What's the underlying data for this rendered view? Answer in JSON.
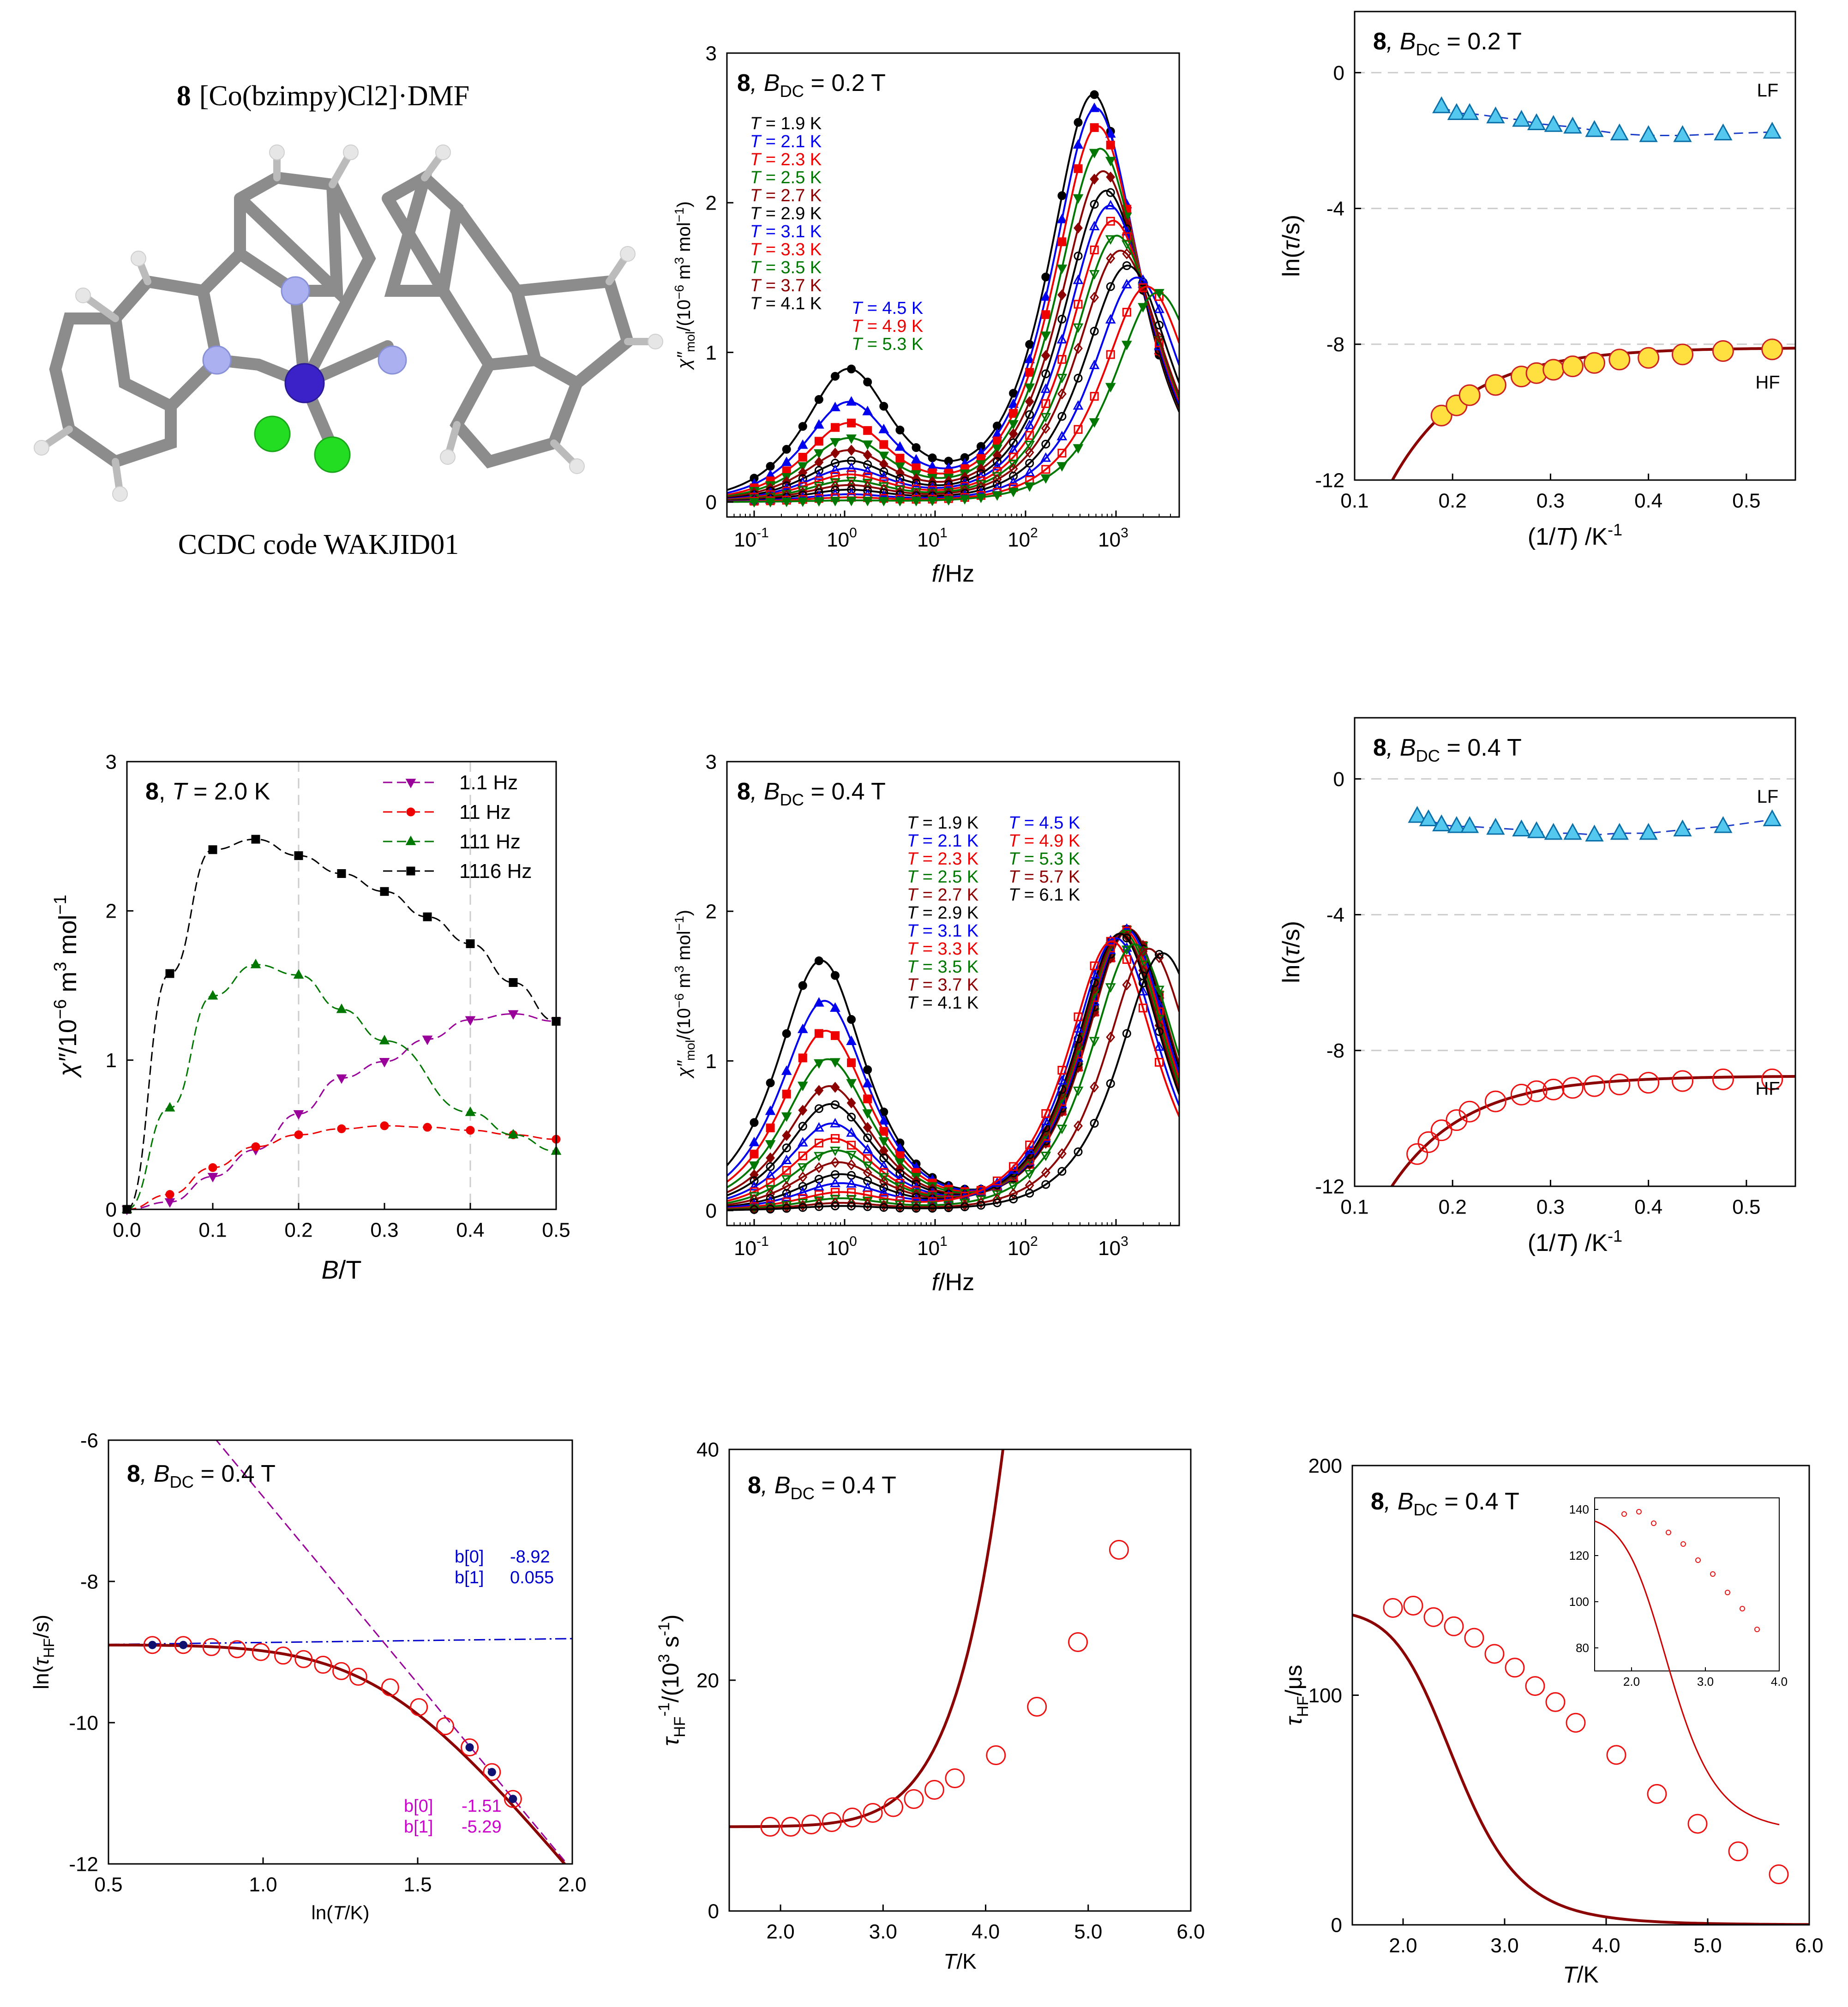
{
  "molecule_panel": {
    "label_num": "8",
    "label_formula": "[Co(bzimpy)Cl2]·DMF",
    "ccdc": "CCDC code WAKJID01",
    "colors": {
      "bond": "#8c8c8c",
      "carbon": "#9a9a9a",
      "nitrogen": "#aab0f0",
      "cobalt": "#3a22c8",
      "chlorine": "#22dd22",
      "hydrogen": "#e6e6e6"
    }
  },
  "chart_data": [
    {
      "id": "ac_02T",
      "type": "line",
      "title": "8, B_DC = 0.2 T",
      "title_num": "8",
      "title_rest": ", B",
      "title_sub": "DC",
      "title_tail": " = 0.2 T",
      "xlabel": "f/Hz",
      "ylabel": "χ''mol/(10^-6 m^3 mol^-1)",
      "xscale": "log",
      "xlim": [
        0.05,
        5000
      ],
      "ylim": [
        -0.1,
        3
      ],
      "yticks": [
        0,
        1,
        2,
        3
      ],
      "xticks": [
        "10-1",
        "100",
        "101",
        "102",
        "103"
      ],
      "legend_col1": [
        "T = 1.9 K",
        "T = 2.1 K",
        "T = 2.3 K",
        "T = 2.5 K",
        "T = 2.7 K",
        "T = 2.9 K",
        "T = 3.1 K",
        "T = 3.3 K",
        "T = 3.5 K",
        "T = 3.7 K",
        "T = 4.1 K"
      ],
      "legend_col2": [
        "T = 4.5 K",
        "T = 4.9 K",
        "T = 5.3 K"
      ],
      "series": [
        {
          "name": "1.9 K",
          "color": "#000000",
          "marker": "circle",
          "fill": true,
          "lf_amp": 0.88,
          "lf_f": 1.1,
          "hf_amp": 2.72,
          "hf_f": 560
        },
        {
          "name": "2.1 K",
          "color": "#0000ee",
          "marker": "triangle-up",
          "fill": true,
          "lf_amp": 0.66,
          "lf_f": 1.1,
          "hf_amp": 2.63,
          "hf_f": 600
        },
        {
          "name": "2.3 K",
          "color": "#ee0000",
          "marker": "square",
          "fill": true,
          "lf_amp": 0.52,
          "lf_f": 1.1,
          "hf_amp": 2.51,
          "hf_f": 630
        },
        {
          "name": "2.5 K",
          "color": "#007700",
          "marker": "triangle-down",
          "fill": true,
          "lf_amp": 0.42,
          "lf_f": 1.1,
          "hf_amp": 2.36,
          "hf_f": 670
        },
        {
          "name": "2.7 K",
          "color": "#8b0000",
          "marker": "diamond",
          "fill": true,
          "lf_amp": 0.34,
          "lf_f": 1.1,
          "hf_amp": 2.21,
          "hf_f": 720
        },
        {
          "name": "2.9 K",
          "color": "#000000",
          "marker": "circle",
          "fill": false,
          "lf_amp": 0.27,
          "lf_f": 1.1,
          "hf_amp": 2.08,
          "hf_f": 780
        },
        {
          "name": "3.1 K",
          "color": "#0000ee",
          "marker": "triangle-up",
          "fill": false,
          "lf_amp": 0.22,
          "lf_f": 1.1,
          "hf_amp": 1.98,
          "hf_f": 850
        },
        {
          "name": "3.3 K",
          "color": "#ee0000",
          "marker": "square",
          "fill": false,
          "lf_amp": 0.18,
          "lf_f": 1.1,
          "hf_amp": 1.88,
          "hf_f": 930
        },
        {
          "name": "3.5 K",
          "color": "#007700",
          "marker": "triangle-down",
          "fill": false,
          "lf_amp": 0.14,
          "lf_f": 1.1,
          "hf_amp": 1.78,
          "hf_f": 1020
        },
        {
          "name": "3.7 K",
          "color": "#8b0000",
          "marker": "diamond",
          "fill": false,
          "lf_amp": 0.11,
          "lf_f": 1.1,
          "hf_amp": 1.68,
          "hf_f": 1120
        },
        {
          "name": "4.1 K",
          "color": "#000000",
          "marker": "circle",
          "fill": false,
          "lf_amp": 0.08,
          "lf_f": 1.1,
          "hf_amp": 1.58,
          "hf_f": 1350
        },
        {
          "name": "4.5 K",
          "color": "#0000ee",
          "marker": "triangle-up",
          "fill": false,
          "lf_amp": 0.05,
          "lf_f": 1.1,
          "hf_amp": 1.5,
          "hf_f": 1700
        },
        {
          "name": "4.9 K",
          "color": "#ee0000",
          "marker": "square",
          "fill": false,
          "lf_amp": 0.03,
          "lf_f": 1.1,
          "hf_amp": 1.44,
          "hf_f": 2200
        },
        {
          "name": "5.3 K",
          "color": "#007700",
          "marker": "triangle-down",
          "fill": true,
          "lf_amp": 0.01,
          "lf_f": 1.1,
          "hf_amp": 1.4,
          "hf_f": 2900
        }
      ]
    },
    {
      "id": "arr_02T",
      "type": "scatter",
      "title_num": "8",
      "title_rest": ", B",
      "title_sub": "DC",
      "title_tail": " = 0.2 T",
      "xlabel": "(1/T) /K-1",
      "ylabel": "ln(τ/s)",
      "xlim": [
        0.1,
        0.55
      ],
      "ylim": [
        -12,
        1.8
      ],
      "xticks": [
        0.1,
        0.2,
        0.3,
        0.4,
        0.5
      ],
      "yticks": [
        0,
        -4,
        -8,
        -12
      ],
      "lf_label": "LF",
      "hf_label": "HF",
      "lf_x": [
        0.1887,
        0.2041,
        0.2174,
        0.2439,
        0.2703,
        0.2857,
        0.303,
        0.3226,
        0.3448,
        0.3704,
        0.4,
        0.4348,
        0.4762,
        0.5263
      ],
      "lf_y": [
        -1.0,
        -1.2,
        -1.2,
        -1.3,
        -1.4,
        -1.5,
        -1.55,
        -1.6,
        -1.7,
        -1.8,
        -1.85,
        -1.85,
        -1.8,
        -1.75
      ],
      "hf_x": [
        0.1887,
        0.2041,
        0.2174,
        0.2439,
        0.2703,
        0.2857,
        0.303,
        0.3226,
        0.3448,
        0.3704,
        0.4,
        0.4348,
        0.4762,
        0.5263
      ],
      "hf_y": [
        -10.1,
        -9.8,
        -9.5,
        -9.2,
        -8.95,
        -8.85,
        -8.75,
        -8.65,
        -8.55,
        -8.45,
        -8.4,
        -8.3,
        -8.2,
        -8.15
      ],
      "hf_fit_inf": -8.1
    },
    {
      "id": "field_scan",
      "type": "line",
      "title_num": "8",
      "title_tail": ", T = 2.0 K",
      "xlabel": "B/T",
      "ylabel": "χ''/10^-6 m^3 mol^-1",
      "xlim": [
        0,
        0.5
      ],
      "ylim": [
        0,
        3
      ],
      "xticks": [
        0.0,
        0.1,
        0.2,
        0.3,
        0.4,
        0.5
      ],
      "yticks": [
        0,
        1,
        2,
        3
      ],
      "x": [
        0,
        0.05,
        0.1,
        0.15,
        0.2,
        0.25,
        0.3,
        0.35,
        0.4,
        0.45,
        0.5
      ],
      "series": [
        {
          "name": "1.1 Hz",
          "color": "#990099",
          "marker": "triangle-down",
          "values": [
            0,
            0.05,
            0.22,
            0.4,
            0.64,
            0.88,
            0.99,
            1.14,
            1.27,
            1.31,
            1.26
          ]
        },
        {
          "name": "11 Hz",
          "color": "#ee0000",
          "marker": "circle",
          "values": [
            0,
            0.1,
            0.28,
            0.42,
            0.5,
            0.54,
            0.56,
            0.55,
            0.53,
            0.5,
            0.47
          ]
        },
        {
          "name": "111 Hz",
          "color": "#007700",
          "marker": "triangle-up",
          "values": [
            0,
            0.68,
            1.43,
            1.64,
            1.57,
            1.34,
            1.13,
            null,
            0.65,
            0.5,
            0.39
          ]
        },
        {
          "name": "1116 Hz",
          "color": "#000000",
          "marker": "square",
          "values": [
            0,
            1.58,
            2.41,
            2.48,
            2.37,
            2.25,
            2.13,
            1.96,
            1.78,
            1.52,
            1.26
          ]
        }
      ]
    },
    {
      "id": "ac_04T",
      "type": "line",
      "title_num": "8",
      "title_rest": ", B",
      "title_sub": "DC",
      "title_tail": " = 0.4 T",
      "xlabel": "f/Hz",
      "ylabel": "χ''mol/(10^-6 m^3 mol^-1)",
      "xscale": "log",
      "xlim": [
        0.05,
        5000
      ],
      "ylim": [
        -0.1,
        3
      ],
      "yticks": [
        0,
        1,
        2,
        3
      ],
      "xticks": [
        "10-1",
        "100",
        "101",
        "102",
        "103"
      ],
      "legend_col1": [
        "T = 1.9 K",
        "T = 2.1 K",
        "T = 2.3 K",
        "T = 2.5 K",
        "T = 2.7 K",
        "T = 2.9 K",
        "T = 3.1 K",
        "T = 3.3 K",
        "T = 3.5 K",
        "T = 3.7 K",
        "T = 4.1 K"
      ],
      "legend_col2": [
        "T = 4.5 K",
        "T = 4.9 K",
        "T = 5.3 K",
        "T = 5.7 K",
        "T = 6.1 K"
      ],
      "series": [
        {
          "name": "1.9 K",
          "color": "#000000",
          "marker": "circle",
          "fill": true,
          "lf_amp": 1.67,
          "lf_f": 0.55,
          "hf_amp": 1.88,
          "hf_f": 1400
        },
        {
          "name": "2.1 K",
          "color": "#0000ee",
          "marker": "triangle-up",
          "fill": true,
          "lf_amp": 1.4,
          "lf_f": 0.6,
          "hf_amp": 1.88,
          "hf_f": 1400
        },
        {
          "name": "2.3 K",
          "color": "#ee0000",
          "marker": "square",
          "fill": true,
          "lf_amp": 1.2,
          "lf_f": 0.62,
          "hf_amp": 1.88,
          "hf_f": 1400
        },
        {
          "name": "2.5 K",
          "color": "#007700",
          "marker": "triangle-down",
          "fill": true,
          "lf_amp": 1.01,
          "lf_f": 0.65,
          "hf_amp": 1.88,
          "hf_f": 1400
        },
        {
          "name": "2.7 K",
          "color": "#8b0000",
          "marker": "diamond",
          "fill": true,
          "lf_amp": 0.83,
          "lf_f": 0.68,
          "hf_amp": 1.88,
          "hf_f": 1400
        },
        {
          "name": "2.9 K",
          "color": "#000000",
          "marker": "circle",
          "fill": false,
          "lf_amp": 0.71,
          "lf_f": 0.7,
          "hf_amp": 1.88,
          "hf_f": 1350
        },
        {
          "name": "3.1 K",
          "color": "#0000ee",
          "marker": "triangle-up",
          "fill": false,
          "lf_amp": 0.58,
          "lf_f": 0.72,
          "hf_amp": 1.88,
          "hf_f": 1300
        },
        {
          "name": "3.3 K",
          "color": "#ee0000",
          "marker": "square",
          "fill": false,
          "lf_amp": 0.48,
          "lf_f": 0.75,
          "hf_amp": 1.87,
          "hf_f": 1250
        },
        {
          "name": "3.5 K",
          "color": "#007700",
          "marker": "triangle-down",
          "fill": false,
          "lf_amp": 0.4,
          "lf_f": 0.8,
          "hf_amp": 1.86,
          "hf_f": 1200
        },
        {
          "name": "3.7 K",
          "color": "#8b0000",
          "marker": "diamond",
          "fill": false,
          "lf_amp": 0.32,
          "lf_f": 0.85,
          "hf_amp": 1.85,
          "hf_f": 1150
        },
        {
          "name": "4.1 K",
          "color": "#000000",
          "marker": "circle",
          "fill": false,
          "lf_amp": 0.24,
          "lf_f": 0.9,
          "hf_amp": 1.85,
          "hf_f": 1100
        },
        {
          "name": "4.5 K",
          "color": "#0000ee",
          "marker": "triangle-up",
          "fill": false,
          "lf_amp": 0.18,
          "lf_f": 0.9,
          "hf_amp": 1.82,
          "hf_f": 1000
        },
        {
          "name": "4.9 K",
          "color": "#ee0000",
          "marker": "square",
          "fill": false,
          "lf_amp": 0.12,
          "lf_f": 0.9,
          "hf_amp": 1.8,
          "hf_f": 900
        },
        {
          "name": "5.3 K",
          "color": "#007700",
          "marker": "triangle-down",
          "fill": false,
          "lf_amp": 0.08,
          "lf_f": 0.9,
          "hf_amp": 1.78,
          "hf_f": 1600
        },
        {
          "name": "5.7 K",
          "color": "#8b0000",
          "marker": "diamond",
          "fill": false,
          "lf_amp": 0.05,
          "lf_f": 0.9,
          "hf_amp": 1.75,
          "hf_f": 2300
        },
        {
          "name": "6.1 K",
          "color": "#000000",
          "marker": "circle",
          "fill": false,
          "lf_amp": 0.03,
          "lf_f": 0.9,
          "hf_amp": 1.72,
          "hf_f": 3300
        }
      ]
    },
    {
      "id": "arr_04T",
      "type": "scatter",
      "title_num": "8",
      "title_rest": ", B",
      "title_sub": "DC",
      "title_tail": " = 0.4 T",
      "xlabel": "(1/T) /K-1",
      "ylabel": "ln(τ/s)",
      "xlim": [
        0.1,
        0.55
      ],
      "ylim": [
        -12,
        1.8
      ],
      "xticks": [
        0.1,
        0.2,
        0.3,
        0.4,
        0.5
      ],
      "yticks": [
        0,
        -4,
        -8,
        -12
      ],
      "lf_label": "LF",
      "hf_label": "HF",
      "lf_x": [
        0.1639,
        0.1754,
        0.1887,
        0.2041,
        0.2174,
        0.2439,
        0.2703,
        0.2857,
        0.303,
        0.3226,
        0.3448,
        0.3704,
        0.4,
        0.4348,
        0.4762,
        0.5263
      ],
      "lf_y": [
        -1.1,
        -1.2,
        -1.35,
        -1.4,
        -1.4,
        -1.45,
        -1.5,
        -1.55,
        -1.6,
        -1.6,
        -1.65,
        -1.6,
        -1.6,
        -1.5,
        -1.4,
        -1.2
      ],
      "hf_x": [
        0.1639,
        0.1754,
        0.1887,
        0.2041,
        0.2174,
        0.2439,
        0.2703,
        0.2857,
        0.303,
        0.3226,
        0.3448,
        0.3704,
        0.4,
        0.4348,
        0.4762,
        0.5263
      ],
      "hf_y": [
        -11.05,
        -10.7,
        -10.35,
        -10.05,
        -9.8,
        -9.5,
        -9.3,
        -9.2,
        -9.15,
        -9.1,
        -9.05,
        -9.0,
        -8.95,
        -8.9,
        -8.85,
        -8.85
      ],
      "hf_fit_inf": -8.75
    },
    {
      "id": "ln_tau_vs_ln_T",
      "type": "scatter",
      "title_num": "8",
      "title_rest": ", B",
      "title_sub": "DC",
      "title_tail": " = 0.4 T",
      "xlabel": "ln(T/K)",
      "ylabel": "ln(τHF/s)",
      "xlim": [
        0.5,
        2.0
      ],
      "ylim": [
        -12,
        -6
      ],
      "xticks": [
        0.5,
        1.0,
        1.5,
        2.0
      ],
      "yticks": [
        -6,
        -8,
        -10,
        -12
      ],
      "x": [
        0.642,
        0.742,
        0.833,
        0.916,
        0.993,
        1.065,
        1.131,
        1.194,
        1.253,
        1.308,
        1.411,
        1.504,
        1.589,
        1.668,
        1.74,
        1.808
      ],
      "y": [
        -8.9,
        -8.9,
        -8.93,
        -8.96,
        -9.0,
        -9.05,
        -9.1,
        -9.18,
        -9.27,
        -9.35,
        -9.5,
        -9.78,
        -10.05,
        -10.35,
        -10.7,
        -11.08
      ],
      "fit1": {
        "b0": -8.92,
        "b1": 0.055,
        "label_b0": "b[0]",
        "val_b0": "-8.92",
        "label_b1": "b[1]",
        "val_b1": "0.055",
        "color": "#0000cc"
      },
      "fit2": {
        "b0": -1.51,
        "b1": -5.29,
        "label_b0": "b[0]",
        "val_b0": "-1.51",
        "label_b1": "b[1]",
        "val_b1": "-5.29",
        "color": "#cc00cc",
        "line_color": "#990099"
      }
    },
    {
      "id": "rate_vs_T",
      "type": "scatter",
      "title_num": "8",
      "title_rest": ", B",
      "title_sub": "DC",
      "title_tail": " = 0.4 T",
      "xlabel": "T/K",
      "ylabel": "τHF^-1/(10^3 s^-1)",
      "xlim": [
        1.5,
        6.0
      ],
      "ylim": [
        0,
        40
      ],
      "xticks": [
        2.0,
        3.0,
        4.0,
        5.0,
        6.0
      ],
      "yticks": [
        0,
        20,
        40
      ],
      "x": [
        1.9,
        2.1,
        2.3,
        2.5,
        2.7,
        2.9,
        3.1,
        3.3,
        3.5,
        3.7,
        4.1,
        4.5,
        4.9,
        5.3
      ],
      "y": [
        7.3,
        7.3,
        7.5,
        7.7,
        8.1,
        8.5,
        9.0,
        9.7,
        10.5,
        11.5,
        13.5,
        17.7,
        23.3,
        31.3
      ],
      "fit": {
        "a": 7.3,
        "b": 8.6e-05,
        "n": 9
      }
    },
    {
      "id": "tau_vs_T",
      "type": "scatter",
      "title_num": "8",
      "title_rest": ", B",
      "title_sub": "DC",
      "title_tail": " = 0.4 T",
      "xlabel": "T/K",
      "ylabel": "τHF/μs",
      "xlim": [
        1.5,
        6.0
      ],
      "ylim": [
        0,
        200
      ],
      "xticks": [
        2.0,
        3.0,
        4.0,
        5.0,
        6.0
      ],
      "yticks": [
        0,
        100,
        200
      ],
      "x": [
        1.9,
        2.1,
        2.3,
        2.5,
        2.7,
        2.9,
        3.1,
        3.3,
        3.5,
        3.7,
        4.1,
        4.5,
        4.9,
        5.3,
        5.7
      ],
      "y": [
        138,
        139,
        134,
        130,
        125,
        118,
        112,
        104,
        97,
        88,
        74,
        57,
        44,
        32,
        22
      ],
      "fit": {
        "a": 137,
        "b": 0.000595,
        "n": 8
      },
      "inset": {
        "xlim": [
          1.5,
          4.0
        ],
        "ylim": [
          70,
          145
        ],
        "xticks": [
          2.0,
          3.0,
          4.0
        ],
        "yticks": [
          80,
          100,
          120,
          140
        ],
        "x": [
          1.9,
          2.1,
          2.3,
          2.5,
          2.7,
          2.9,
          3.1,
          3.3,
          3.5,
          3.7
        ],
        "y": [
          138,
          139,
          134,
          130,
          125,
          118,
          112,
          104,
          97,
          88
        ]
      }
    }
  ]
}
